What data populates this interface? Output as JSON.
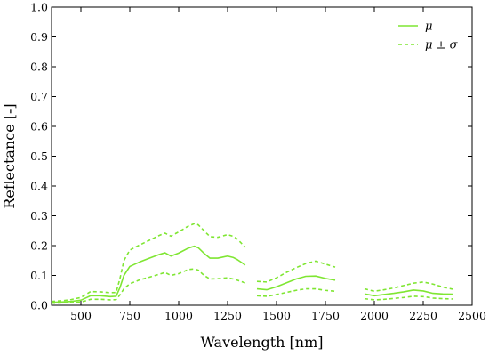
{
  "colors": {
    "series": "#7fe632",
    "axis": "#000000"
  },
  "chart_data": {
    "type": "line",
    "title": "",
    "xlabel": "Wavelength [nm]",
    "ylabel": "Reflectance [-]",
    "xlim": [
      350,
      2500
    ],
    "ylim": [
      0.0,
      1.0
    ],
    "xticks": [
      500,
      750,
      1000,
      1250,
      1500,
      1750,
      2000,
      2250,
      2500
    ],
    "xtick_labels": [
      "500",
      "750",
      "1000",
      "1250",
      "1500",
      "1750",
      "2000",
      "2250",
      "2500"
    ],
    "yticks": [
      0.0,
      0.1,
      0.2,
      0.3,
      0.4,
      0.5,
      0.6,
      0.7,
      0.8,
      0.9,
      1.0
    ],
    "ytick_labels": [
      "0.0",
      "0.1",
      "0.2",
      "0.3",
      "0.4",
      "0.5",
      "0.6",
      "0.7",
      "0.8",
      "0.9",
      "1.0"
    ],
    "grid": false,
    "legend": {
      "placement": "top-right",
      "entries": [
        "μ",
        "μ ± σ"
      ]
    },
    "series": [
      {
        "name": "μ",
        "style": "solid",
        "segments": [
          {
            "x": [
              350,
              400,
              450,
              500,
              530,
              550,
              600,
              650,
              680,
              700,
              720,
              750,
              800,
              850,
              900,
              930,
              960,
              1000,
              1050,
              1080,
              1100,
              1130,
              1160,
              1200,
              1250,
              1280,
              1300,
              1340
            ],
            "y": [
              0.01,
              0.011,
              0.013,
              0.017,
              0.026,
              0.032,
              0.032,
              0.029,
              0.03,
              0.06,
              0.1,
              0.13,
              0.145,
              0.158,
              0.17,
              0.176,
              0.165,
              0.175,
              0.192,
              0.198,
              0.193,
              0.174,
              0.158,
              0.158,
              0.165,
              0.16,
              0.153,
              0.135
            ]
          },
          {
            "x": [
              1400,
              1450,
              1500,
              1550,
              1600,
              1650,
              1700,
              1750,
              1800
            ],
            "y": [
              0.055,
              0.052,
              0.062,
              0.075,
              0.088,
              0.097,
              0.098,
              0.09,
              0.084
            ]
          },
          {
            "x": [
              1950,
              2000,
              2050,
              2100,
              2150,
              2200,
              2250,
              2300,
              2350,
              2400
            ],
            "y": [
              0.038,
              0.032,
              0.036,
              0.04,
              0.045,
              0.051,
              0.048,
              0.04,
              0.038,
              0.037
            ]
          }
        ]
      },
      {
        "name": "μ ± σ",
        "style": "dashed",
        "segments": [
          {
            "x": [
              350,
              400,
              450,
              500,
              530,
              550,
              600,
              650,
              680,
              700,
              720,
              750,
              800,
              850,
              900,
              930,
              960,
              1000,
              1050,
              1080,
              1100,
              1130,
              1160,
              1200,
              1250,
              1280,
              1300,
              1340
            ],
            "y": [
              0.013,
              0.015,
              0.019,
              0.026,
              0.038,
              0.046,
              0.045,
              0.042,
              0.043,
              0.09,
              0.15,
              0.185,
              0.202,
              0.218,
              0.234,
              0.242,
              0.232,
              0.246,
              0.266,
              0.274,
              0.27,
              0.25,
              0.23,
              0.228,
              0.237,
              0.231,
              0.222,
              0.195
            ]
          },
          {
            "x": [
              1400,
              1450,
              1500,
              1550,
              1600,
              1650,
              1700,
              1750,
              1800
            ],
            "y": [
              0.08,
              0.078,
              0.092,
              0.11,
              0.126,
              0.14,
              0.148,
              0.138,
              0.128
            ]
          },
          {
            "x": [
              1950,
              2000,
              2050,
              2100,
              2150,
              2200,
              2250,
              2300,
              2350,
              2400
            ],
            "y": [
              0.055,
              0.047,
              0.052,
              0.058,
              0.066,
              0.074,
              0.078,
              0.071,
              0.061,
              0.054
            ]
          },
          {
            "x": [
              350,
              400,
              450,
              500,
              530,
              550,
              600,
              650,
              680,
              700,
              720,
              750,
              800,
              850,
              900,
              930,
              960,
              1000,
              1050,
              1080,
              1100,
              1130,
              1160,
              1200,
              1250,
              1280,
              1300,
              1340
            ],
            "y": [
              0.007,
              0.008,
              0.009,
              0.011,
              0.016,
              0.02,
              0.02,
              0.018,
              0.019,
              0.035,
              0.055,
              0.072,
              0.085,
              0.094,
              0.104,
              0.11,
              0.1,
              0.106,
              0.12,
              0.122,
              0.118,
              0.1,
              0.088,
              0.089,
              0.092,
              0.088,
              0.084,
              0.075
            ]
          },
          {
            "x": [
              1400,
              1450,
              1500,
              1550,
              1600,
              1650,
              1700,
              1750,
              1800
            ],
            "y": [
              0.032,
              0.03,
              0.036,
              0.043,
              0.05,
              0.055,
              0.055,
              0.05,
              0.047
            ]
          },
          {
            "x": [
              1950,
              2000,
              2050,
              2100,
              2150,
              2200,
              2250,
              2300,
              2350,
              2400
            ],
            "y": [
              0.022,
              0.018,
              0.02,
              0.023,
              0.026,
              0.03,
              0.029,
              0.024,
              0.022,
              0.021
            ]
          }
        ]
      }
    ]
  }
}
